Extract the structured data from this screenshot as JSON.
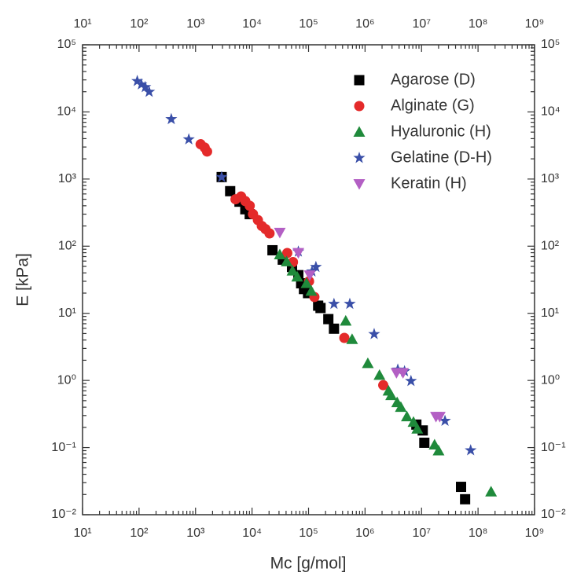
{
  "chart_data": {
    "type": "scatter",
    "x_label": "Mc [g/mol]",
    "y_label": "E [kPa]",
    "xscale": "log",
    "yscale": "log",
    "xlim": [
      10,
      1000000000
    ],
    "ylim": [
      0.01,
      100000
    ],
    "xticks": [
      {
        "value": 10,
        "label": "10¹"
      },
      {
        "value": 100,
        "label": "10²"
      },
      {
        "value": 1000,
        "label": "10³"
      },
      {
        "value": 10000,
        "label": "10⁴"
      },
      {
        "value": 100000,
        "label": "10⁵"
      },
      {
        "value": 1000000,
        "label": "10⁶"
      },
      {
        "value": 10000000,
        "label": "10⁷"
      },
      {
        "value": 100000000,
        "label": "10⁸"
      },
      {
        "value": 1000000000,
        "label": "10⁹"
      }
    ],
    "yticks": [
      {
        "value": 0.01,
        "label": "10⁻²"
      },
      {
        "value": 0.1,
        "label": "10⁻¹"
      },
      {
        "value": 1,
        "label": "10⁰"
      },
      {
        "value": 10,
        "label": "10¹"
      },
      {
        "value": 100,
        "label": "10²"
      },
      {
        "value": 1000,
        "label": "10³"
      },
      {
        "value": 10000,
        "label": "10⁴"
      },
      {
        "value": 100000,
        "label": "10⁵"
      }
    ],
    "legend": "upper right",
    "series": [
      {
        "name": "Agarose (D)",
        "color": "#000000",
        "marker": "square",
        "x": [
          2900,
          4100,
          6000,
          7600,
          9100,
          23000,
          35000,
          51000,
          66000,
          74000,
          83000,
          98000,
          148000,
          163000,
          224000,
          282000,
          8100000,
          10500000,
          11200000,
          50000000,
          59000000
        ],
        "values": [
          1070,
          660,
          460,
          355,
          300,
          87,
          63,
          49,
          37,
          28,
          23,
          20,
          13,
          12,
          8.2,
          5.9,
          0.22,
          0.18,
          0.118,
          0.026,
          0.017
        ]
      },
      {
        "name": "Alginate (G)",
        "color": "#e42a2a",
        "marker": "circle",
        "x": [
          1230,
          1450,
          1600,
          5100,
          6400,
          7600,
          9100,
          10400,
          12700,
          14900,
          17300,
          20400,
          42000,
          53000,
          102000,
          127000,
          430000,
          2100000
        ],
        "values": [
          3300,
          2950,
          2570,
          500,
          550,
          470,
          400,
          300,
          245,
          200,
          180,
          155,
          79,
          58,
          30,
          17.5,
          4.3,
          0.85
        ]
      },
      {
        "name": "Hyaluronic (H)",
        "color": "#1f8a3b",
        "marker": "triangle",
        "x": [
          31000,
          41000,
          52000,
          63000,
          92000,
          112000,
          455000,
          590000,
          1120000,
          1800000,
          2600000,
          2900000,
          3700000,
          4300000,
          5500000,
          7200000,
          8400000,
          17000000,
          20000000,
          170000000
        ],
        "values": [
          75,
          59,
          43,
          35,
          28,
          21.5,
          7.7,
          4.1,
          1.8,
          1.2,
          0.7,
          0.6,
          0.47,
          0.4,
          0.29,
          0.24,
          0.19,
          0.11,
          0.09,
          0.022
        ]
      },
      {
        "name": "Gelatine (D-H)",
        "color": "#3a4fa8",
        "marker": "star",
        "x": [
          93,
          110,
          129,
          151,
          372,
          760,
          2900,
          66000,
          115000,
          135000,
          282000,
          537000,
          1450000,
          3800000,
          5000000,
          6500000,
          26000000,
          74000000
        ],
        "values": [
          28800,
          25700,
          23400,
          19900,
          7800,
          3900,
          1070,
          83,
          42,
          49,
          13.8,
          13.8,
          4.9,
          1.45,
          1.37,
          0.98,
          0.25,
          0.091
        ]
      },
      {
        "name": "Keratin (H)",
        "color": "#b35fc4",
        "marker": "triangle-down",
        "x": [
          31000,
          66000,
          105000,
          3600000,
          4700000,
          18000000,
          21000000
        ],
        "values": [
          160,
          80,
          37,
          1.3,
          1.3,
          0.29,
          0.29
        ]
      }
    ]
  }
}
